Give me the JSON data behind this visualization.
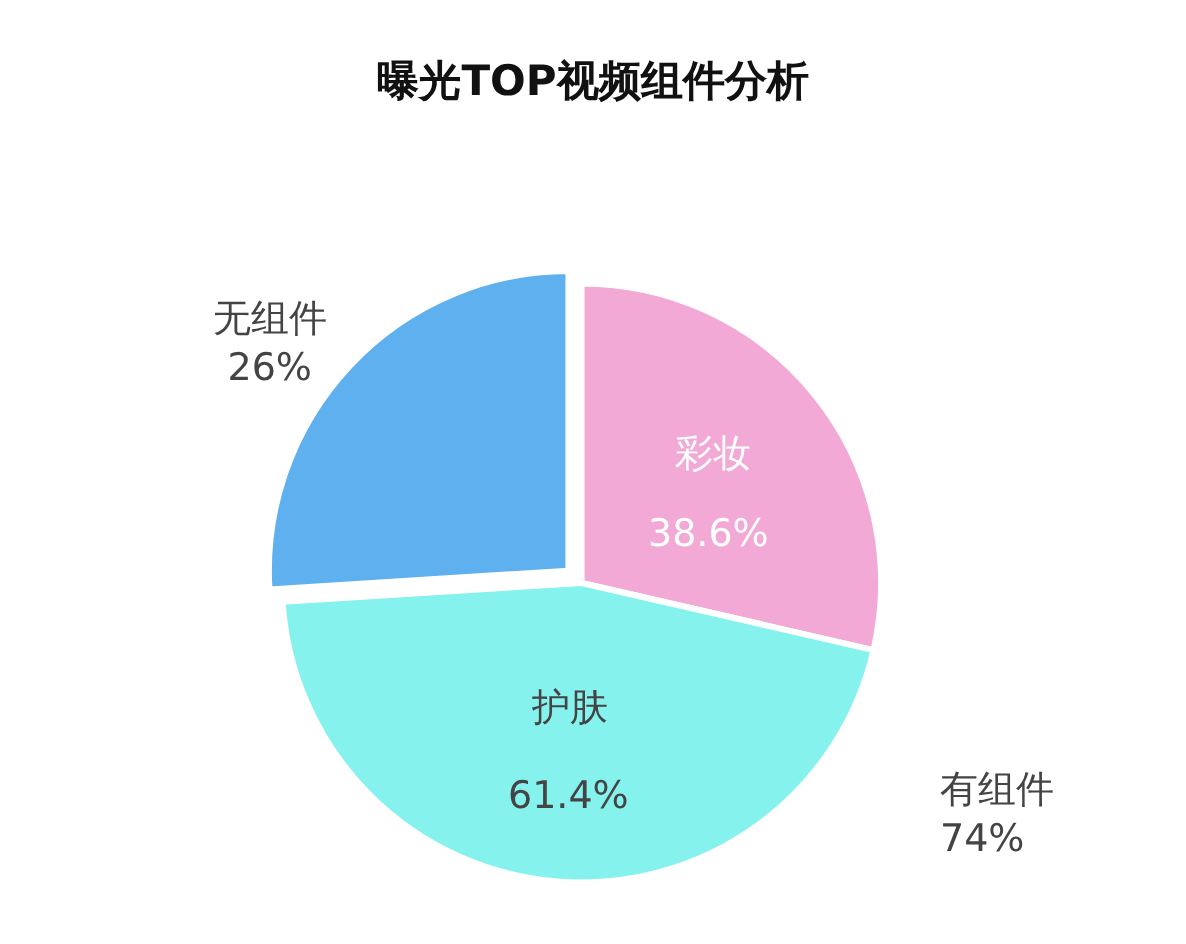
{
  "chart_data": {
    "type": "pie",
    "title": "曝光TOP视频组件分析",
    "categories": [
      "彩妆",
      "护肤",
      "无组件"
    ],
    "values": [
      28.6,
      45.4,
      26
    ],
    "value_labels": [
      null,
      null,
      "26%"
    ],
    "colors": [
      "#f2a9d6",
      "#86f2ee",
      "#5fb0ee"
    ],
    "annotations": [
      "38.6%",
      "61.4%",
      "有组件\n74%"
    ],
    "legend": false
  }
}
